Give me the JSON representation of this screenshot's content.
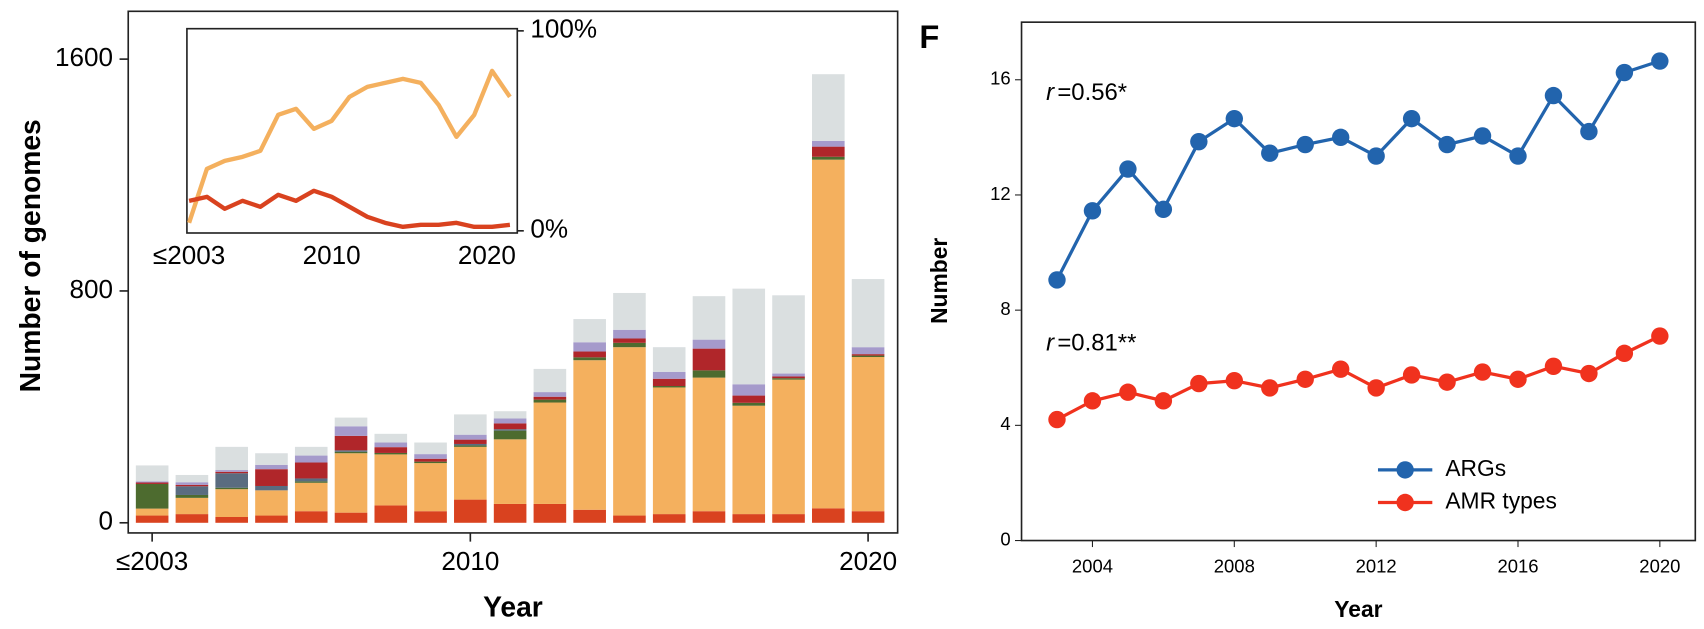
{
  "chart_data": [
    {
      "type": "stacked_bar",
      "y_label": "Number of genomes",
      "x_label": "Year",
      "categories": [
        "≤2003",
        null,
        null,
        null,
        null,
        null,
        null,
        null,
        "2010",
        null,
        null,
        null,
        null,
        null,
        null,
        null,
        null,
        null,
        "2020"
      ],
      "ylim": [
        -35,
        1765
      ],
      "yticks": [
        0,
        800,
        1600
      ],
      "series": [
        {
          "color": "#d9421f",
          "values": [
            25,
            30,
            20,
            25,
            40,
            35,
            60,
            40,
            80,
            65,
            65,
            45,
            25,
            30,
            40,
            30,
            30,
            50,
            40
          ]
        },
        {
          "color": "#f4b05e",
          "values": [
            24,
            56,
            96,
            87,
            98,
            205,
            176,
            166,
            182,
            223,
            350,
            516,
            581,
            437,
            461,
            374,
            464,
            1203,
            532
          ]
        },
        {
          "color": "#4d6b2f",
          "values": [
            85,
            10,
            5,
            0,
            5,
            5,
            5,
            5,
            5,
            30,
            10,
            10,
            15,
            5,
            25,
            10,
            5,
            10,
            5
          ]
        },
        {
          "color": "#5a6c80",
          "values": [
            0,
            30,
            50,
            15,
            10,
            5,
            0,
            0,
            5,
            5,
            0,
            0,
            0,
            0,
            0,
            0,
            0,
            0,
            0
          ]
        },
        {
          "color": "#b0262a",
          "values": [
            5,
            5,
            5,
            58,
            55,
            50,
            20,
            10,
            15,
            20,
            10,
            20,
            15,
            25,
            75,
            25,
            6,
            35,
            5
          ]
        },
        {
          "color": "#a59acb",
          "values": [
            4,
            9,
            6,
            15,
            24,
            33,
            16,
            16,
            17,
            17,
            16,
            32,
            30,
            24,
            31,
            39,
            10,
            20,
            24
          ]
        },
        {
          "color": "#dadfe0",
          "values": [
            55,
            25,
            80,
            40,
            30,
            30,
            30,
            40,
            70,
            25,
            80,
            80,
            127,
            85,
            150,
            330,
            270,
            230,
            235
          ]
        }
      ]
    },
    {
      "type": "line",
      "categories": [
        "≤2003",
        null,
        null,
        null,
        null,
        null,
        null,
        null,
        "2010",
        null,
        null,
        null,
        null,
        null,
        null,
        null,
        null,
        null,
        "2020"
      ],
      "ylim": [
        0,
        100
      ],
      "yticks": [
        {
          "value": 0,
          "label": "0%"
        },
        {
          "value": 100,
          "label": "100%"
        }
      ],
      "series": [
        {
          "color": "#f4b05e",
          "values": [
            4,
            31,
            35,
            37,
            40,
            58,
            61,
            51,
            55,
            67,
            72,
            74,
            76,
            74,
            63,
            47,
            58,
            80,
            67
          ]
        },
        {
          "color": "#d9421f",
          "values": [
            15,
            17,
            11,
            15,
            12,
            18,
            15,
            20,
            17,
            12,
            7,
            4,
            2,
            3,
            3,
            4,
            2,
            2,
            3
          ]
        }
      ]
    },
    {
      "type": "line",
      "panel_label": "F",
      "y_label": "Number",
      "x_label": "Year",
      "x": [
        2003,
        2004,
        2005,
        2006,
        2007,
        2008,
        2009,
        2010,
        2011,
        2012,
        2013,
        2014,
        2015,
        2016,
        2017,
        2018,
        2019,
        2020
      ],
      "xlim": [
        2002,
        2021
      ],
      "xticks": [
        2004,
        2008,
        2012,
        2016,
        2020
      ],
      "ylim": [
        0,
        18
      ],
      "yticks": [
        0,
        4,
        8,
        12,
        16
      ],
      "legend": "lower right",
      "annotations": [
        {
          "var": "r",
          "text": "=0.56*",
          "x": 2003,
          "y": 15.5
        },
        {
          "var": "r",
          "text": "=0.81**",
          "x": 2003,
          "y": 6.8
        }
      ],
      "series": [
        {
          "name": "ARGs",
          "color": "#2264ad",
          "values": [
            9.05,
            11.45,
            12.9,
            11.5,
            13.85,
            14.65,
            13.45,
            13.75,
            14,
            13.35,
            14.65,
            13.75,
            14.05,
            13.35,
            15.45,
            14.2,
            16.25,
            16.65
          ]
        },
        {
          "name": "AMR types",
          "color": "#f0321e",
          "values": [
            4.2,
            4.85,
            5.15,
            4.85,
            5.45,
            5.55,
            5.3,
            5.6,
            5.95,
            5.3,
            5.75,
            5.5,
            5.85,
            5.6,
            6.05,
            5.8,
            6.5,
            7.1
          ]
        }
      ]
    }
  ]
}
